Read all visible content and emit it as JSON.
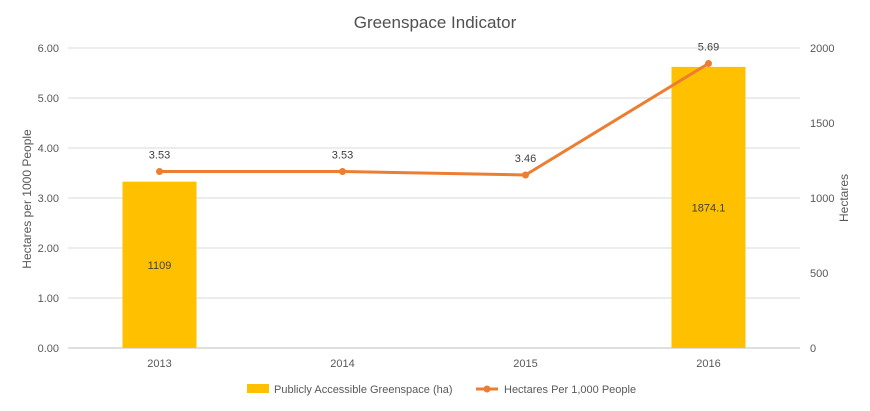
{
  "chart_data": {
    "type": "bar",
    "title": "Greenspace Indicator",
    "categories": [
      "2013",
      "2014",
      "2015",
      "2016"
    ],
    "ylabel": "Hectares per 1000 People",
    "y2label": "Hectares",
    "ylim": [
      0,
      6
    ],
    "y2lim": [
      0,
      2000
    ],
    "yticks": [
      "0.00",
      "1.00",
      "2.00",
      "3.00",
      "4.00",
      "5.00",
      "6.00"
    ],
    "y2ticks": [
      "0",
      "500",
      "1000",
      "1500",
      "2000"
    ],
    "grid": true,
    "legend_position": "bottom",
    "series": [
      {
        "name": "Publicly Accessible Greenspace (ha)",
        "type": "bar",
        "axis": "secondary",
        "values": [
          1109,
          null,
          null,
          1874.1
        ],
        "labels": [
          "1109",
          "",
          "",
          "1874.1"
        ],
        "color": "#FFC000"
      },
      {
        "name": "Hectares Per 1,000 People",
        "type": "line",
        "axis": "primary",
        "values": [
          3.53,
          3.53,
          3.46,
          5.69
        ],
        "labels": [
          "3.53",
          "3.53",
          "3.46",
          "5.69"
        ],
        "color": "#ED7D31"
      }
    ]
  }
}
